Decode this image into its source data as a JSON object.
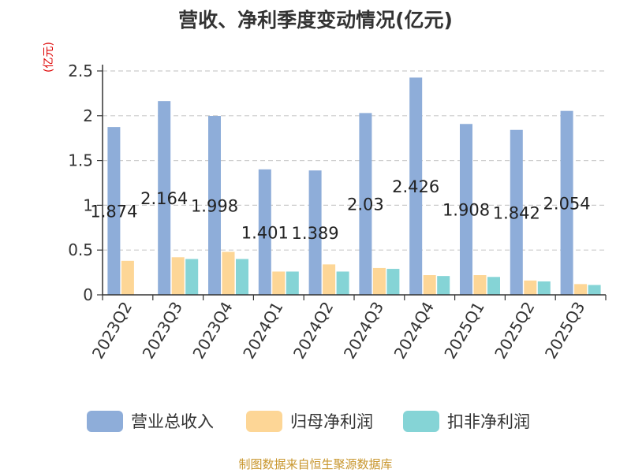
{
  "header": {
    "title": "营收、净利季度变动情况(亿元)"
  },
  "footer": {
    "source": "制图数据来自恒生聚源数据库"
  },
  "colors": {
    "revenue": "#8eadd9",
    "net_profit": "#fdd696",
    "deducted_profit": "#85d4d6",
    "grid": "#cccccc",
    "axis": "#333333",
    "unit": "#dd0000"
  },
  "chart_data": {
    "type": "bar",
    "title": "营收、净利季度变动情况(亿元)",
    "ylabel": "(亿元)",
    "xlabel": "",
    "ylim": [
      0,
      2.5
    ],
    "yticks": [
      "0",
      "0.5",
      "1",
      "1.5",
      "2",
      "2.5"
    ],
    "grid": true,
    "legend_position": "bottom",
    "categories": [
      "2023Q2",
      "2023Q3",
      "2023Q4",
      "2024Q1",
      "2024Q2",
      "2024Q3",
      "2024Q4",
      "2025Q1",
      "2025Q2",
      "2025Q3"
    ],
    "series": [
      {
        "name": "营业总收入",
        "values": [
          1.874,
          2.164,
          1.998,
          1.401,
          1.389,
          2.03,
          2.426,
          1.908,
          1.842,
          2.054
        ],
        "labels": [
          "1.874",
          "2.164",
          "1.998",
          "1.401",
          "1.389",
          "2.03",
          "2.426",
          "1.908",
          "1.842",
          "2.054"
        ]
      },
      {
        "name": "归母净利润",
        "values": [
          0.38,
          0.42,
          0.48,
          0.26,
          0.34,
          0.3,
          0.22,
          0.22,
          0.16,
          0.12
        ]
      },
      {
        "name": "扣非净利润",
        "values": [
          0.0,
          0.4,
          0.4,
          0.26,
          0.26,
          0.29,
          0.21,
          0.2,
          0.15,
          0.11
        ]
      }
    ]
  }
}
